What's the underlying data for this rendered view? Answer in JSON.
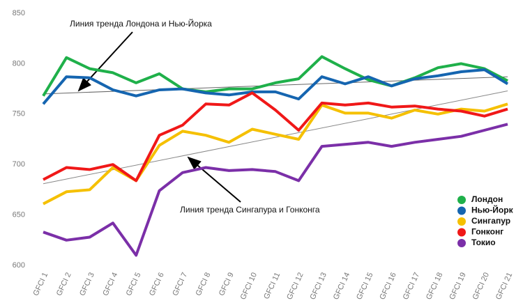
{
  "chart_data": {
    "type": "line",
    "categories": [
      "GFCI 1",
      "GFCI 2",
      "GFCI 3",
      "GFCI 4",
      "GFCI 5",
      "GFCI 6",
      "GFCI 7",
      "GFCI 8",
      "GFCI 9",
      "GFCI 10",
      "GFCI 11",
      "GFCI 12",
      "GFCI 13",
      "GFCI 14",
      "GFCI 15",
      "GFCI 16",
      "GFCI 17",
      "GFCI 18",
      "GFCI 19",
      "GFCI 20",
      "GFCI 21"
    ],
    "series": [
      {
        "name": "Лондон",
        "color": "#1fb04a",
        "values": [
          768,
          806,
          795,
          791,
          781,
          790,
          775,
          772,
          775,
          775,
          781,
          785,
          807,
          795,
          784,
          778,
          786,
          796,
          800,
          795,
          783
        ]
      },
      {
        "name": "Нью-Йорк",
        "color": "#1565b0",
        "values": [
          760,
          787,
          786,
          774,
          768,
          774,
          775,
          771,
          769,
          772,
          772,
          765,
          787,
          780,
          787,
          778,
          785,
          788,
          792,
          794,
          780
        ]
      },
      {
        "name": "Сингапур",
        "color": "#f5c000",
        "values": [
          661,
          673,
          675,
          697,
          684,
          719,
          733,
          729,
          722,
          735,
          730,
          725,
          759,
          751,
          751,
          746,
          754,
          750,
          755,
          753,
          760
        ]
      },
      {
        "name": "Гонконг",
        "color": "#f01818",
        "values": [
          685,
          697,
          695,
          700,
          684,
          729,
          739,
          760,
          759,
          771,
          754,
          734,
          761,
          759,
          761,
          757,
          758,
          755,
          753,
          748,
          755
        ]
      },
      {
        "name": "Токио",
        "color": "#7b2fa8",
        "values": [
          633,
          625,
          628,
          642,
          610,
          674,
          692,
          697,
          694,
          695,
          693,
          684,
          718,
          720,
          722,
          718,
          722,
          725,
          728,
          734,
          740
        ]
      }
    ],
    "trend_lines": [
      {
        "label": "Линия тренда Лондона и Нью-Йорка",
        "start": 770,
        "end": 787,
        "color": "#666666"
      },
      {
        "label": "Линия тренда Сингапура и Гонконга",
        "start": 681,
        "end": 773,
        "color": "#888888"
      }
    ],
    "ylim": [
      600,
      850
    ],
    "yticks": [
      600,
      650,
      700,
      750,
      800,
      850
    ],
    "grid": false,
    "legend": "lower right"
  }
}
